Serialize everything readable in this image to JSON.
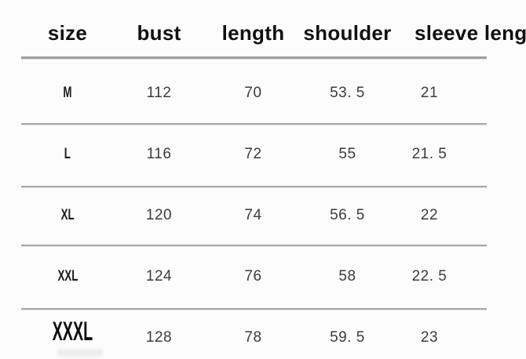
{
  "table": {
    "headers": [
      "size",
      "bust",
      "length",
      "shoulder",
      "sleeve length"
    ],
    "rows": [
      [
        "M",
        "112",
        "70",
        "53. 5",
        "21"
      ],
      [
        "L",
        "116",
        "72",
        "55",
        "21. 5"
      ],
      [
        "XL",
        "120",
        "74",
        "56. 5",
        "22"
      ],
      [
        "XXL",
        "124",
        "76",
        "58",
        "22. 5"
      ],
      [
        "XXXL",
        "128",
        "78",
        "59. 5",
        "23"
      ]
    ],
    "colors": {
      "background": "#fcfcfc",
      "divider": "#a8a8a8",
      "header_text": "#111111",
      "size_label_text": "#1a1a1a",
      "value_text": "#3c3c3c"
    }
  }
}
